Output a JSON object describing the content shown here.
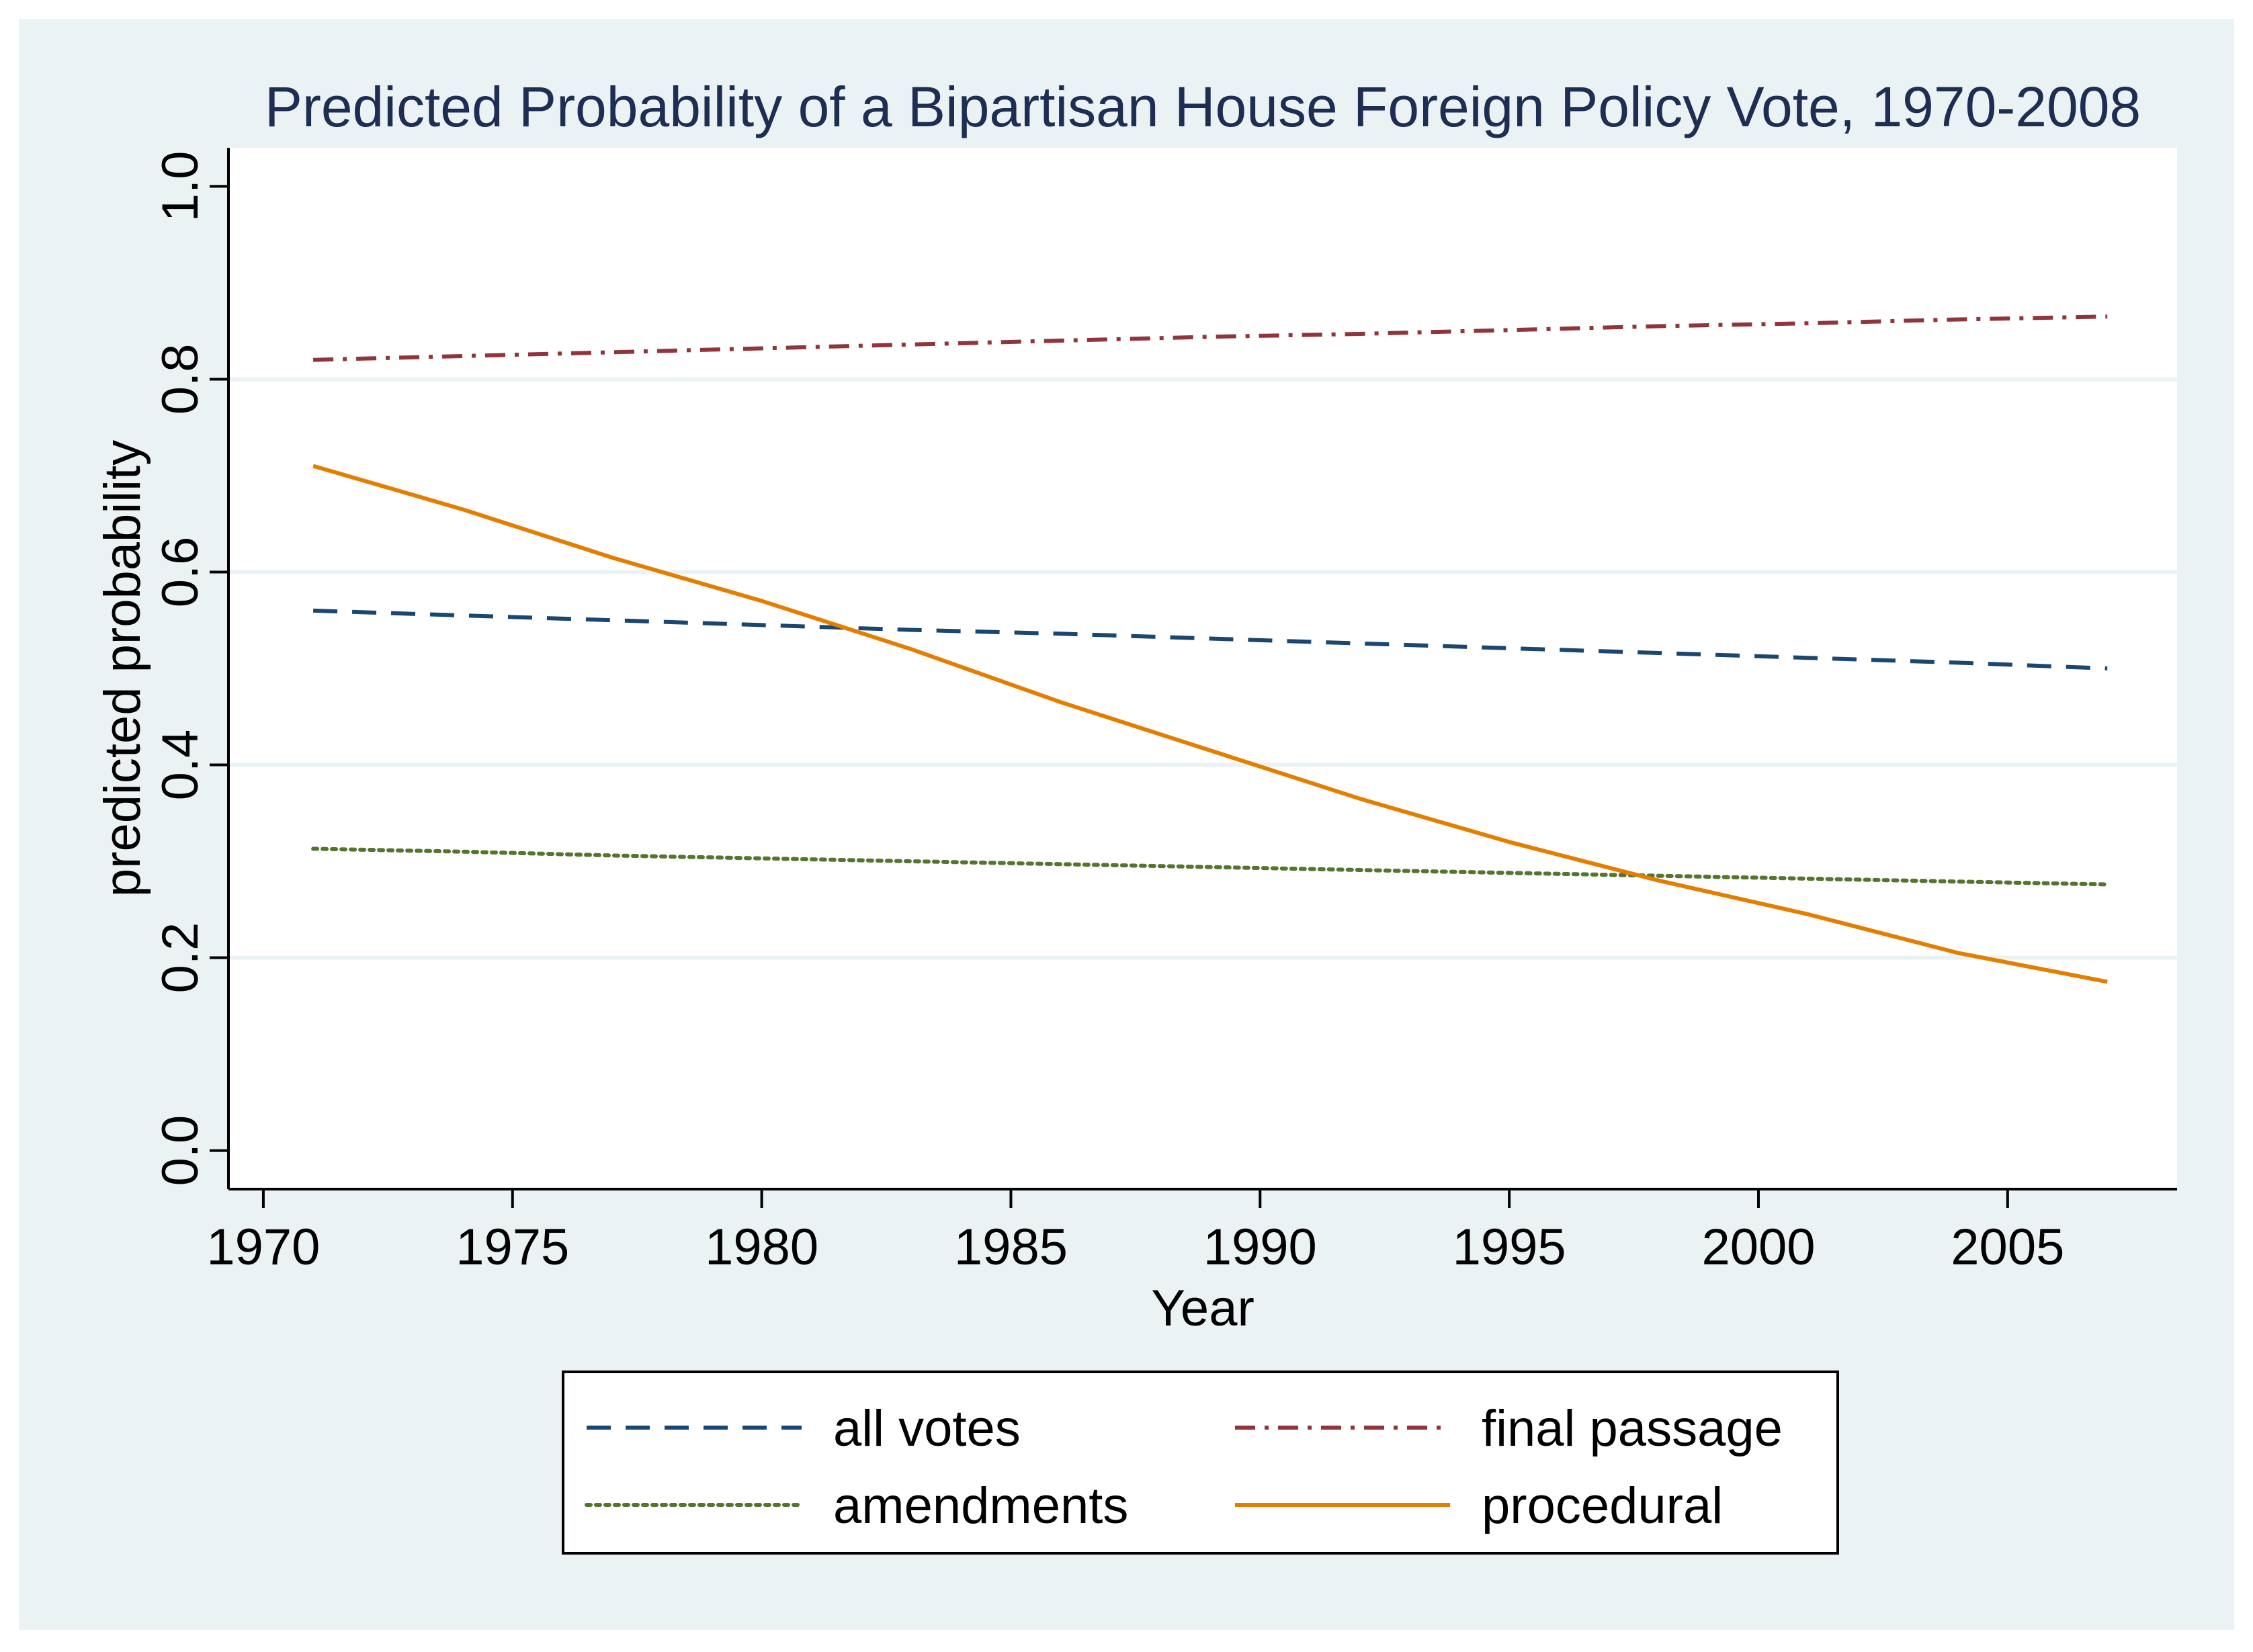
{
  "chart_data": {
    "type": "line",
    "title": "Predicted Probability of a Bipartisan House Foreign Policy Vote, 1970-2008",
    "xlabel": "Year",
    "ylabel": "predicted probability",
    "xlim": [
      1969.3,
      2008.4
    ],
    "ylim": [
      -0.04,
      1.04
    ],
    "xticks": [
      1970,
      1975,
      1980,
      1985,
      1990,
      1995,
      2000,
      2005
    ],
    "yticks": [
      0.0,
      0.2,
      0.4,
      0.6,
      0.8,
      1.0
    ],
    "ytick_labels": [
      "0.0",
      "0.2",
      "0.4",
      "0.6",
      "0.8",
      "1.0"
    ],
    "grid": "horizontal",
    "legend_position": "bottom",
    "x": [
      1971,
      1974,
      1977,
      1980,
      1983,
      1986,
      1989,
      1992,
      1995,
      1998,
      2001,
      2004,
      2007
    ],
    "series": [
      {
        "name": "all votes",
        "color": "#1a476f",
        "dash": "dash",
        "values": [
          0.56,
          0.555,
          0.55,
          0.545,
          0.54,
          0.536,
          0.531,
          0.526,
          0.521,
          0.516,
          0.511,
          0.506,
          0.5
        ]
      },
      {
        "name": "final passage",
        "color": "#90353b",
        "dash": "dashdot",
        "values": [
          0.82,
          0.824,
          0.828,
          0.832,
          0.836,
          0.84,
          0.844,
          0.847,
          0.851,
          0.855,
          0.858,
          0.862,
          0.865
        ]
      },
      {
        "name": "amendments",
        "color": "#55752f",
        "dash": "dot",
        "values": [
          0.313,
          0.31,
          0.306,
          0.303,
          0.3,
          0.297,
          0.294,
          0.291,
          0.288,
          0.285,
          0.282,
          0.279,
          0.276
        ]
      },
      {
        "name": "procedural",
        "color": "#e37e00",
        "dash": "solid",
        "values": [
          0.71,
          0.665,
          0.615,
          0.57,
          0.52,
          0.465,
          0.415,
          0.365,
          0.32,
          0.28,
          0.245,
          0.205,
          0.175
        ]
      }
    ],
    "legend_order": [
      "all votes",
      "final passage",
      "amendments",
      "procedural"
    ]
  }
}
